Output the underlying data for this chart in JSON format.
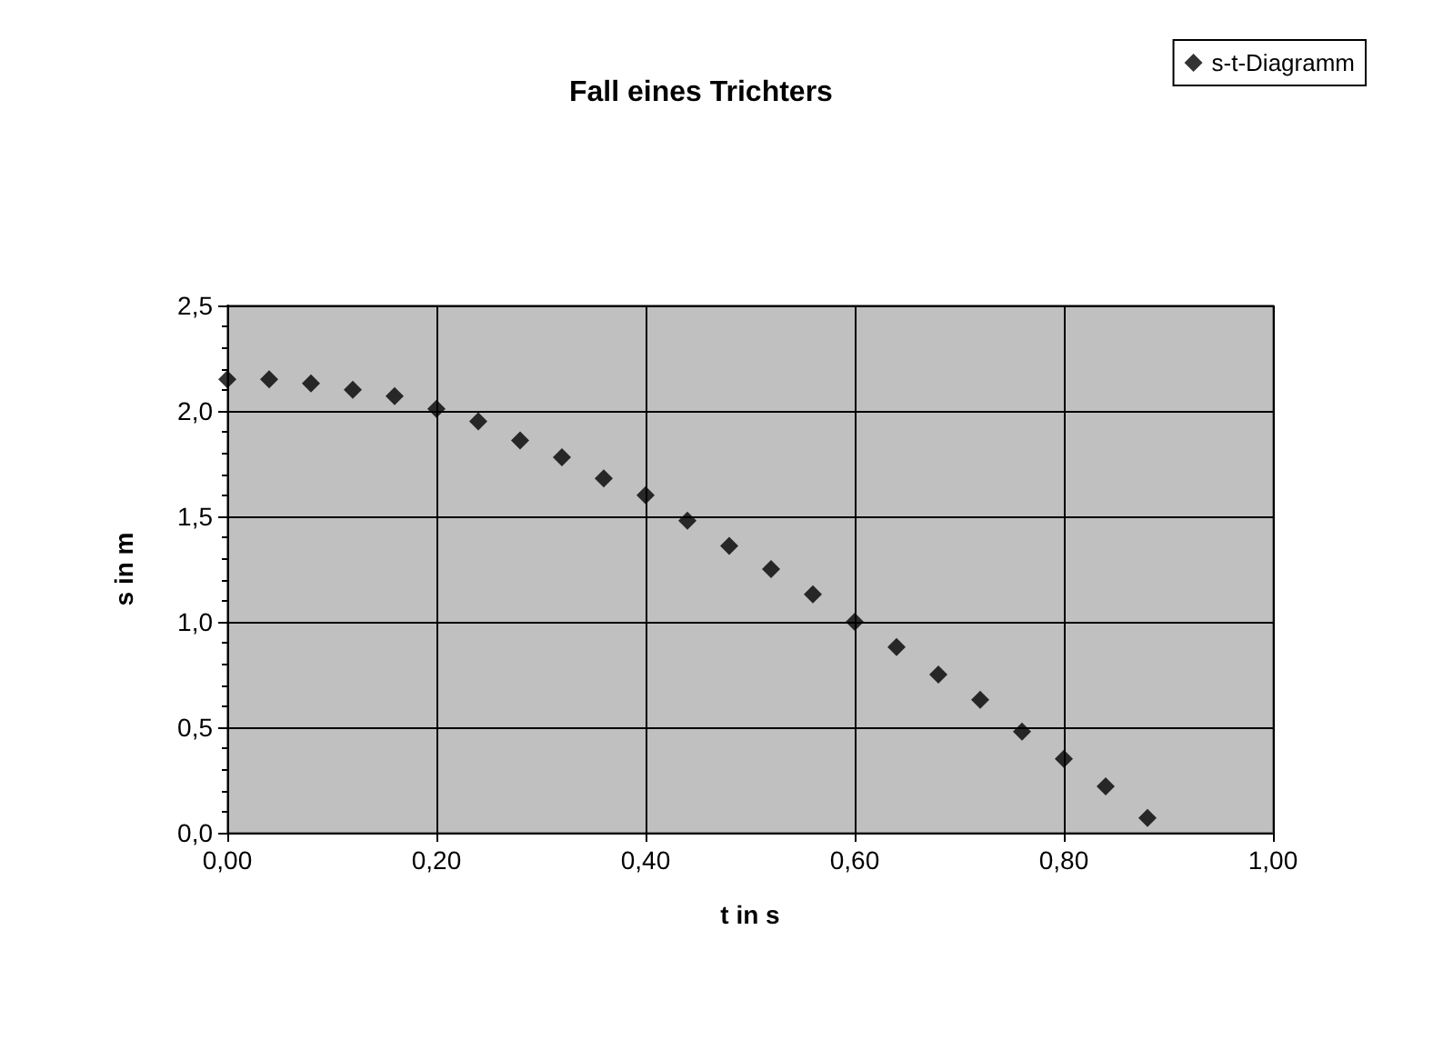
{
  "chart_data": {
    "type": "scatter",
    "title": "Fall eines Trichters",
    "xlabel": "t in s",
    "ylabel": "s in m",
    "x": [
      0,
      0.04,
      0.08,
      0.12,
      0.16,
      0.2,
      0.24,
      0.28,
      0.32,
      0.36,
      0.4,
      0.44,
      0.48,
      0.52,
      0.56,
      0.6,
      0.64,
      0.68,
      0.72,
      0.76,
      0.8,
      0.84,
      0.88
    ],
    "series": [
      {
        "name": "s-t-Diagramm",
        "color": "#000000",
        "values": [
          2.15,
          2.15,
          2.13,
          2.1,
          2.07,
          2.01,
          1.95,
          1.86,
          1.78,
          1.68,
          1.6,
          1.48,
          1.36,
          1.25,
          1.13,
          1.0,
          0.88,
          0.75,
          0.63,
          0.48,
          0.35,
          0.22,
          0.07
        ]
      }
    ],
    "xlim": [
      0,
      1
    ],
    "xticks": [
      {
        "value": 0,
        "label": "0,00"
      },
      {
        "value": 0.2,
        "label": "0,20"
      },
      {
        "value": 0.4,
        "label": "0,40"
      },
      {
        "value": 0.6,
        "label": "0,60"
      },
      {
        "value": 0.8,
        "label": "0,80"
      },
      {
        "value": 1,
        "label": "1,00"
      }
    ],
    "ylim": [
      0,
      2.5
    ],
    "yticks": [
      {
        "value": 0,
        "label": "0,0"
      },
      {
        "value": 0.5,
        "label": "0,5"
      },
      {
        "value": 1,
        "label": "1,0"
      },
      {
        "value": 1.5,
        "label": "1,5"
      },
      {
        "value": 2,
        "label": "2,0"
      },
      {
        "value": 2.5,
        "label": "2,5"
      }
    ],
    "grid": true,
    "legend": "top right",
    "marker": "diamond"
  }
}
